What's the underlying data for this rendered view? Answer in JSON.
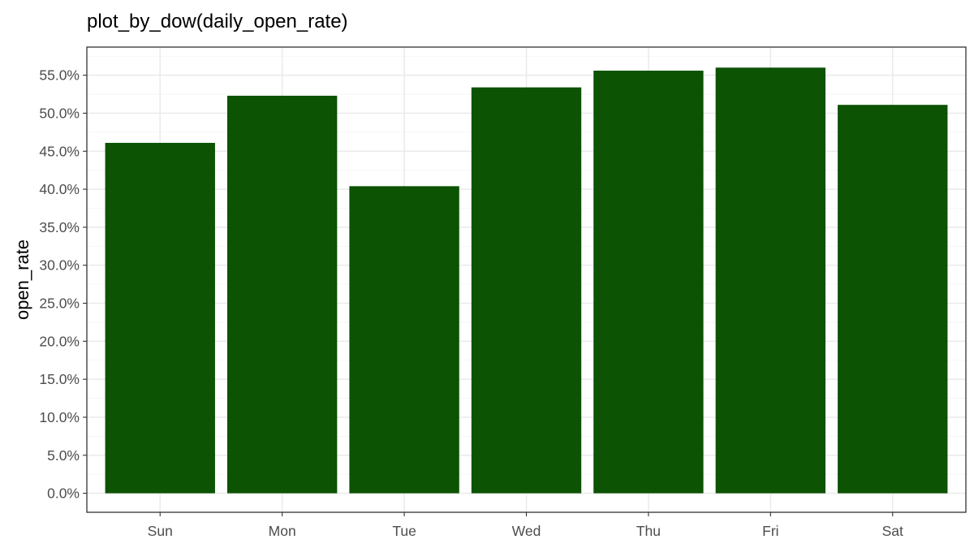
{
  "chart_data": {
    "type": "bar",
    "title": "plot_by_dow(daily_open_rate)",
    "xlabel": "",
    "ylabel": "open_rate",
    "categories": [
      "Sun",
      "Mon",
      "Tue",
      "Wed",
      "Thu",
      "Fri",
      "Sat"
    ],
    "values": [
      0.461,
      0.523,
      0.404,
      0.534,
      0.556,
      0.56,
      0.511
    ],
    "ylim": [
      -0.025,
      0.587
    ],
    "yticks": [
      0.0,
      0.05,
      0.1,
      0.15,
      0.2,
      0.25,
      0.3,
      0.35,
      0.4,
      0.45,
      0.5,
      0.55
    ],
    "ytick_labels": [
      "0.0%",
      "5.0%",
      "10.0%",
      "15.0%",
      "20.0%",
      "25.0%",
      "30.0%",
      "35.0%",
      "40.0%",
      "45.0%",
      "50.0%",
      "55.0%"
    ],
    "grid": true,
    "legend": "none",
    "bar_color": "#0c5303",
    "panel_border_color": "#333333",
    "grid_color": "#ebebeb"
  }
}
